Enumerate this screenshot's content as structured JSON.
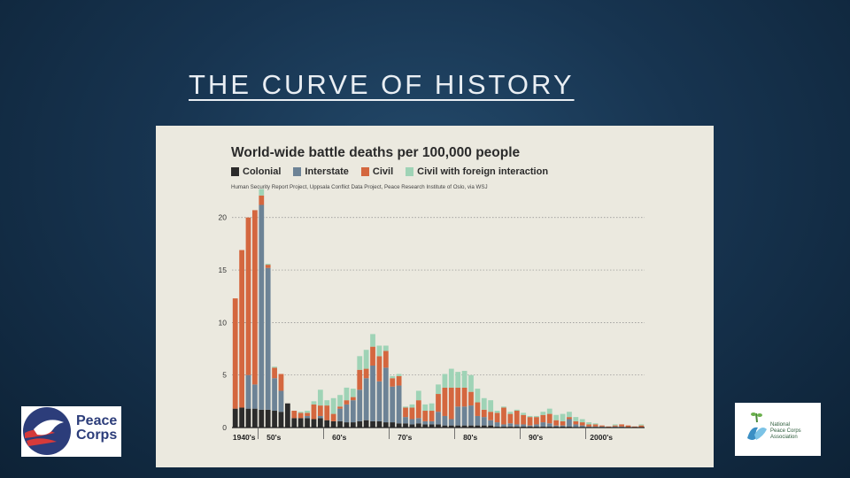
{
  "slide": {
    "title": "THE CURVE OF HISTORY"
  },
  "logos": {
    "peace_corps": {
      "line1": "Peace",
      "line2": "Corps"
    },
    "npca": {
      "line1": "National",
      "line2": "Peace Corps",
      "line3": "Association"
    }
  },
  "colors": {
    "colonial": "#2b2b2b",
    "interstate": "#6d8396",
    "civil": "#d4673f",
    "civil_foreign": "#9fd3b6"
  },
  "chart_data": {
    "type": "bar",
    "stacked": true,
    "title": "World-wide battle deaths per 100,000 people",
    "source": "Human Security Report Project, Uppsala Conflict Data Project, Peace Research Institute of Oslo, via WSJ",
    "legend": [
      "Colonial",
      "Interstate",
      "Civil",
      "Civil with foreign interaction"
    ],
    "legend_position": "top-left",
    "ylim": [
      0,
      22
    ],
    "yticks": [
      0,
      5,
      10,
      15,
      20
    ],
    "grid": true,
    "xtick_labels": [
      "1940's",
      "50's",
      "60's",
      "70's",
      "80's",
      "90's",
      "2000's"
    ],
    "x_range": [
      1946,
      2008
    ],
    "x_start": 1946,
    "series": [
      {
        "name": "Colonial",
        "values": [
          1.8,
          1.9,
          1.8,
          1.8,
          1.7,
          1.7,
          1.6,
          1.5,
          2.3,
          0.9,
          0.9,
          0.9,
          0.8,
          0.9,
          0.7,
          0.6,
          0.6,
          0.5,
          0.5,
          0.6,
          0.7,
          0.6,
          0.6,
          0.5,
          0.5,
          0.4,
          0.4,
          0.3,
          0.4,
          0.3,
          0.3,
          0.3,
          0.2,
          0.2,
          0.2,
          0.2,
          0.2,
          0.2,
          0.2,
          0.2,
          0.1,
          0.1,
          0.1,
          0.1,
          0.1,
          0.1,
          0.1,
          0.1,
          0.1,
          0.1,
          0.1,
          0.1,
          0,
          0,
          0,
          0,
          0,
          0,
          0,
          0,
          0,
          0,
          0
        ]
      },
      {
        "name": "Interstate",
        "values": [
          0,
          0,
          3.2,
          2.3,
          19.5,
          13.5,
          3.1,
          2.0,
          0,
          0,
          0,
          0.2,
          0,
          0.2,
          0,
          0,
          1.2,
          1.7,
          2.1,
          3.0,
          4.0,
          5.3,
          3.8,
          5.2,
          3.4,
          3.6,
          0.6,
          0.5,
          0.5,
          0.3,
          0.3,
          1.2,
          0.9,
          0.6,
          1.8,
          1.8,
          1.9,
          0.9,
          0.8,
          0.5,
          0.4,
          0.2,
          0.3,
          0.2,
          0.2,
          0.1,
          0.2,
          0.4,
          0.3,
          0.1,
          0.1,
          0.7,
          0.3,
          0.2,
          0.1,
          0.1,
          0.1,
          0,
          0.1,
          0.1,
          0,
          0,
          0
        ]
      },
      {
        "name": "Civil",
        "values": [
          10.5,
          15,
          15,
          16.6,
          0.9,
          0.3,
          1.0,
          1.6,
          0,
          0.7,
          0.5,
          0.3,
          1.4,
          1.0,
          1.4,
          0.7,
          0.2,
          0.4,
          0.3,
          1.9,
          0.9,
          1.8,
          2.4,
          1.6,
          0.8,
          0.9,
          0.9,
          1.1,
          1.7,
          1.0,
          1.0,
          1.7,
          2.7,
          3.0,
          1.8,
          1.8,
          1.3,
          1.3,
          0.7,
          0.8,
          0.9,
          1.6,
          0.9,
          1.3,
          0.9,
          0.8,
          0.7,
          0.7,
          0.9,
          0.5,
          0.4,
          0.2,
          0.3,
          0.3,
          0.2,
          0.2,
          0.1,
          0.1,
          0.1,
          0.2,
          0.2,
          0.1,
          0.2
        ]
      },
      {
        "name": "Civil with foreign interaction",
        "values": [
          0,
          0,
          0,
          0,
          0.6,
          0.1,
          0.1,
          0,
          0,
          0,
          0.1,
          0.2,
          0.3,
          1.5,
          0.5,
          1.5,
          1.1,
          1.2,
          0.8,
          1.3,
          1.8,
          1.2,
          1.0,
          0.5,
          0.2,
          0.2,
          0.1,
          0.3,
          0.9,
          0.6,
          0.7,
          0.9,
          1.3,
          1.8,
          1.5,
          1.6,
          1.6,
          1.3,
          1.1,
          1.1,
          0.2,
          0.1,
          0.2,
          0.1,
          0.2,
          0.1,
          0.1,
          0.3,
          0.5,
          0.5,
          0.7,
          0.5,
          0.4,
          0.3,
          0.2,
          0.1,
          0,
          0,
          0.1,
          0,
          0,
          0,
          0.1
        ]
      }
    ]
  }
}
